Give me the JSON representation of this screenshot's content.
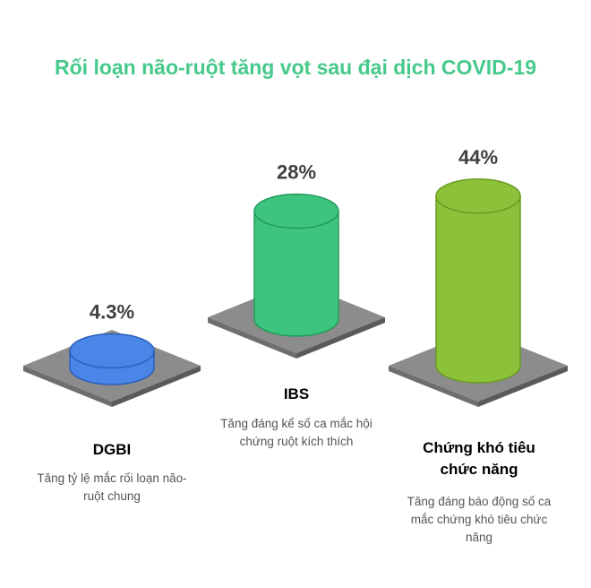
{
  "title": "Rối loạn não-ruột tăng vọt sau đại dịch COVID-19",
  "chart_data": {
    "type": "bar",
    "title": "Rối loạn não-ruột tăng vọt sau đại dịch COVID-19",
    "categories": [
      "DGBI",
      "IBS",
      "Chứng khó tiêu chức năng"
    ],
    "values": [
      4.3,
      28,
      44
    ],
    "value_labels": [
      "4.3%",
      "28%",
      "44%"
    ],
    "unit": "%",
    "descriptions": [
      "Tăng tỷ lệ mắc rối loạn não-ruột chung",
      "Tăng đáng kể số ca mắc hội chứng ruột kích thích",
      "Tăng đáng báo động số ca mắc chứng khó tiêu chức năng"
    ],
    "colors": [
      "#4a86e8",
      "#3dc47e",
      "#8cc13a"
    ]
  }
}
